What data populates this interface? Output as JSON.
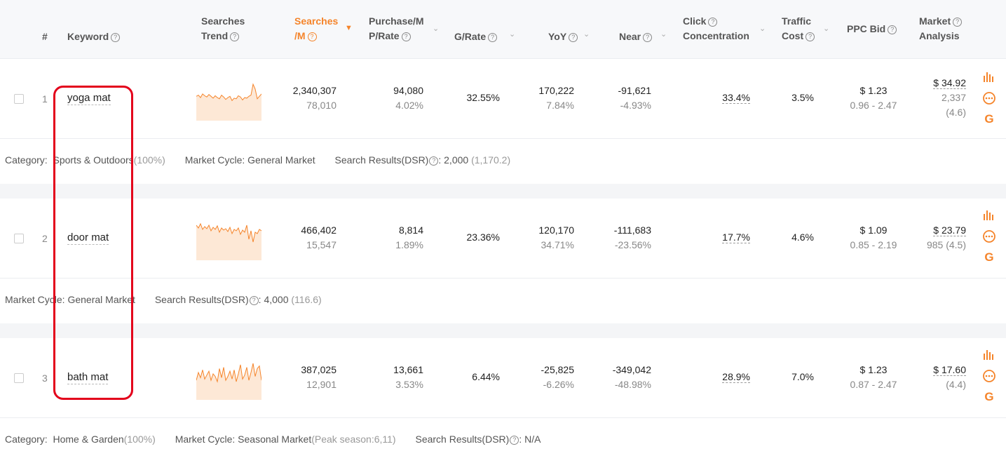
{
  "header": {
    "num": "#",
    "keyword": "Keyword",
    "searches_trend_l1": "Searches",
    "searches_trend_l2": "Trend",
    "searches_m_l1": "Searches",
    "searches_m_l2": "/M",
    "purchase_l1": "Purchase/M",
    "purchase_l2": "P/Rate",
    "grate": "G/Rate",
    "yoy": "YoY",
    "near": "Near",
    "click_l1": "Click",
    "click_l2": "Concentration",
    "traffic_l1": "Traffic",
    "traffic_l2": "Cost",
    "ppc": "PPC Bid",
    "market_l1": "Market",
    "market_l2": "Analysis"
  },
  "rows": [
    {
      "num": "1",
      "keyword": "yoga mat",
      "searches": "2,340,307",
      "searches_sub": "78,010",
      "purchase": "94,080",
      "purchase_sub": "4.02%",
      "grate": "32.55%",
      "yoy": "170,222",
      "yoy_sub": "7.84%",
      "near": "-91,621",
      "near_sub": "-4.93%",
      "click": "33.4%",
      "traffic": "3.5%",
      "ppc": "$ 1.23",
      "ppc_sub": "0.96 - 2.47",
      "market_price": "$ 34.92",
      "market_l2": "2,337",
      "market_l3": "(4.6)",
      "trend": [
        40,
        42,
        38,
        44,
        41,
        39,
        43,
        40,
        37,
        41,
        38,
        36,
        42,
        39,
        35,
        38,
        40,
        33,
        37,
        36,
        41,
        39,
        34,
        38,
        37,
        40,
        42,
        60,
        52,
        36,
        40,
        44
      ],
      "meta": {
        "category_label": "Category:",
        "category": "Sports & Outdoors",
        "category_pct": "(100%)",
        "cycle_label": "Market Cycle:",
        "cycle": "General Market",
        "dsr_label": "Search Results(DSR)",
        "dsr": ": 2,000",
        "dsr_sub": "(1,170.2)"
      }
    },
    {
      "num": "2",
      "keyword": "door mat",
      "searches": "466,402",
      "searches_sub": "15,547",
      "purchase": "8,814",
      "purchase_sub": "1.89%",
      "grate": "23.36%",
      "yoy": "120,170",
      "yoy_sub": "34.71%",
      "near": "-111,683",
      "near_sub": "-23.56%",
      "click": "17.7%",
      "traffic": "4.6%",
      "ppc": "$ 1.09",
      "ppc_sub": "0.85 - 2.19",
      "market_price": "$ 23.79",
      "market_l2": "985 (4.5)",
      "trend": [
        50,
        46,
        52,
        44,
        48,
        45,
        50,
        42,
        47,
        44,
        49,
        40,
        46,
        43,
        45,
        41,
        47,
        38,
        44,
        42,
        46,
        37,
        43,
        40,
        50,
        30,
        42,
        26,
        40,
        38,
        44,
        42
      ],
      "meta": {
        "cycle_label": "Market Cycle:",
        "cycle": "General Market",
        "dsr_label": "Search Results(DSR)",
        "dsr": ": 4,000",
        "dsr_sub": "(116.6)"
      }
    },
    {
      "num": "3",
      "keyword": "bath mat",
      "searches": "387,025",
      "searches_sub": "12,901",
      "purchase": "13,661",
      "purchase_sub": "3.53%",
      "grate": "6.44%",
      "yoy": "-25,825",
      "yoy_sub": "-6.26%",
      "near": "-349,042",
      "near_sub": "-48.98%",
      "click": "28.9%",
      "traffic": "7.0%",
      "ppc": "$ 1.23",
      "ppc_sub": "0.87 - 2.47",
      "market_price": "$ 17.60",
      "market_l2": "(4.4)",
      "trend": [
        30,
        42,
        34,
        46,
        32,
        38,
        44,
        30,
        40,
        36,
        28,
        48,
        34,
        50,
        30,
        36,
        44,
        32,
        46,
        28,
        40,
        54,
        32,
        38,
        50,
        30,
        42,
        56,
        36,
        48,
        52,
        30
      ],
      "meta": {
        "category_label": "Category:",
        "category": "Home & Garden",
        "category_pct": "(100%)",
        "cycle_label": "Market Cycle:",
        "cycle": "Seasonal Market",
        "cycle_sub": "(Peak season:6,11)",
        "dsr_label": "Search Results(DSR)",
        "dsr": ": N/A"
      }
    }
  ],
  "colors": {
    "accent": "#f5842a",
    "highlight": "#e3001b"
  }
}
